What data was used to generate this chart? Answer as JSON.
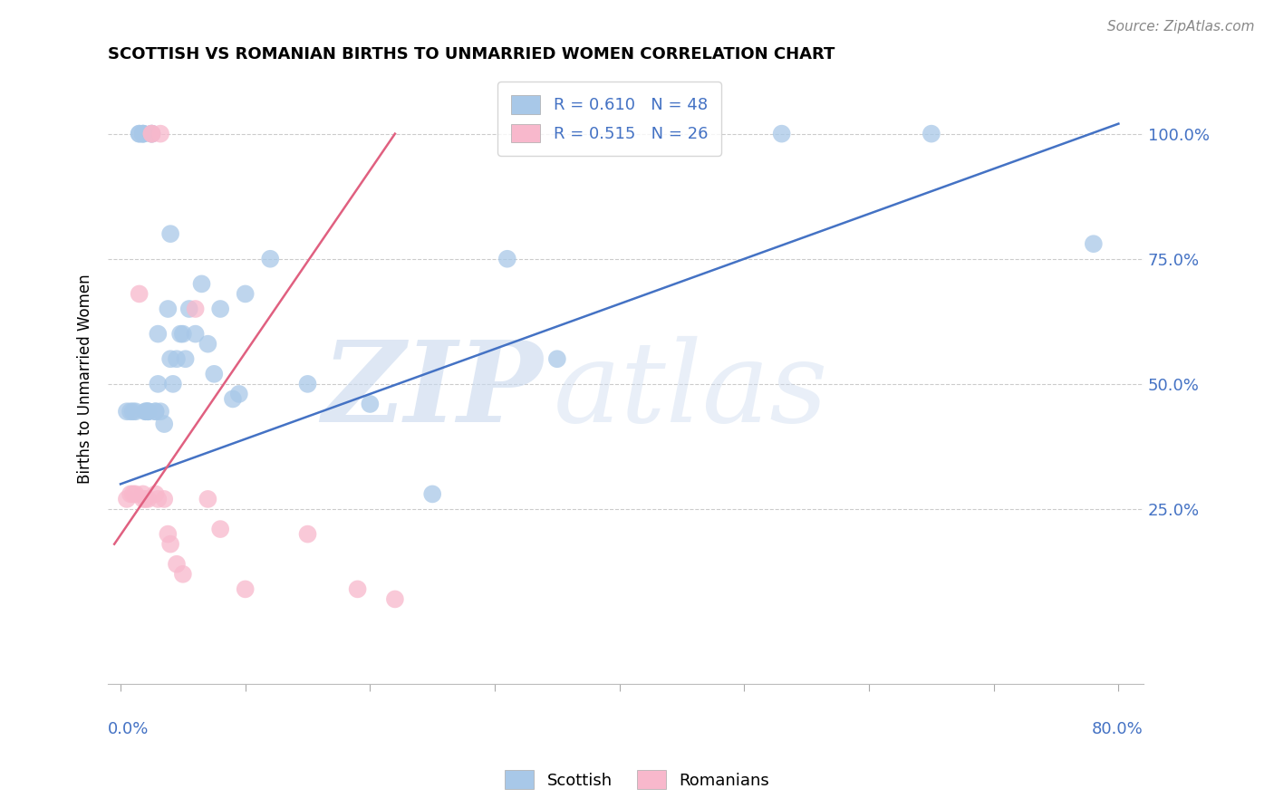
{
  "title": "SCOTTISH VS ROMANIAN BIRTHS TO UNMARRIED WOMEN CORRELATION CHART",
  "source": "Source: ZipAtlas.com",
  "ylabel": "Births to Unmarried Women",
  "ytick_labels": [
    "25.0%",
    "50.0%",
    "75.0%",
    "100.0%"
  ],
  "ytick_values": [
    0.25,
    0.5,
    0.75,
    1.0
  ],
  "xlim": [
    -0.01,
    0.82
  ],
  "ylim": [
    -0.1,
    1.12
  ],
  "watermark_zip": "ZIP",
  "watermark_atlas": "atlas",
  "scottish_r": 0.61,
  "scottish_n": 48,
  "romanian_r": 0.515,
  "romanian_n": 26,
  "scottish_color": "#a8c8e8",
  "romanian_color": "#f8b8cc",
  "scottish_line_color": "#4472c4",
  "romanian_line_color": "#e06080",
  "scottish_x": [
    0.005,
    0.008,
    0.01,
    0.012,
    0.015,
    0.015,
    0.018,
    0.018,
    0.018,
    0.02,
    0.02,
    0.022,
    0.022,
    0.022,
    0.025,
    0.025,
    0.028,
    0.028,
    0.03,
    0.03,
    0.032,
    0.035,
    0.038,
    0.04,
    0.04,
    0.042,
    0.045,
    0.048,
    0.05,
    0.052,
    0.055,
    0.06,
    0.065,
    0.07,
    0.075,
    0.08,
    0.09,
    0.095,
    0.1,
    0.12,
    0.15,
    0.2,
    0.25,
    0.31,
    0.35,
    0.53,
    0.65,
    0.78
  ],
  "scottish_y": [
    0.445,
    0.445,
    0.445,
    0.445,
    1.0,
    1.0,
    1.0,
    1.0,
    1.0,
    0.445,
    0.445,
    0.445,
    0.445,
    0.445,
    1.0,
    1.0,
    0.445,
    0.445,
    0.5,
    0.6,
    0.445,
    0.42,
    0.65,
    0.55,
    0.8,
    0.5,
    0.55,
    0.6,
    0.6,
    0.55,
    0.65,
    0.6,
    0.7,
    0.58,
    0.52,
    0.65,
    0.47,
    0.48,
    0.68,
    0.75,
    0.5,
    0.46,
    0.28,
    0.75,
    0.55,
    1.0,
    1.0,
    0.78
  ],
  "romanian_x": [
    0.005,
    0.008,
    0.01,
    0.012,
    0.015,
    0.018,
    0.018,
    0.02,
    0.022,
    0.025,
    0.025,
    0.028,
    0.03,
    0.032,
    0.035,
    0.038,
    0.04,
    0.045,
    0.05,
    0.06,
    0.07,
    0.08,
    0.1,
    0.15,
    0.19,
    0.22
  ],
  "romanian_y": [
    0.27,
    0.28,
    0.28,
    0.28,
    0.68,
    0.27,
    0.28,
    0.27,
    0.27,
    1.0,
    1.0,
    0.28,
    0.27,
    1.0,
    0.27,
    0.2,
    0.18,
    0.14,
    0.12,
    0.65,
    0.27,
    0.21,
    0.09,
    0.2,
    0.09,
    0.07
  ],
  "scottish_line_x": [
    0.0,
    0.8
  ],
  "scottish_line_y": [
    0.3,
    1.02
  ],
  "romanian_line_x": [
    -0.005,
    0.22
  ],
  "romanian_line_y": [
    0.18,
    1.0
  ]
}
